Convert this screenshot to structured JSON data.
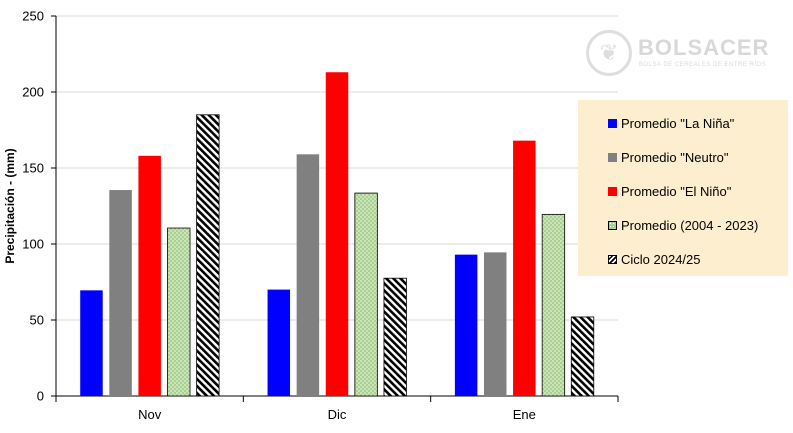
{
  "chart_data": {
    "type": "bar",
    "ylabel": "Precipitación - (mm)",
    "ylim": [
      0,
      250
    ],
    "yticks": [
      0,
      50,
      100,
      150,
      200,
      250
    ],
    "categories": [
      "Nov",
      "Dic",
      "Ene"
    ],
    "grid": true,
    "legend_position": "right",
    "series": [
      {
        "name": "Promedio \"La Niña\"",
        "values": [
          69.5,
          70,
          93
        ],
        "color": "#0000ff",
        "pattern": "solid"
      },
      {
        "name": "Promedio \"Neutro\"",
        "values": [
          135.5,
          159,
          94.5
        ],
        "color": "#808080",
        "pattern": "solid"
      },
      {
        "name": "Promedio \"El Niño\"",
        "values": [
          158,
          213,
          168
        ],
        "color": "#ff0000",
        "pattern": "solid"
      },
      {
        "name": "Promedio (2004 - 2023)",
        "values": [
          110.5,
          133.5,
          119.5
        ],
        "color": "#a9d18e",
        "pattern": "dots"
      },
      {
        "name": "Ciclo 2024/25",
        "values": [
          185,
          77.5,
          52
        ],
        "color": "#000000",
        "pattern": "diagonal-stripes"
      }
    ]
  },
  "logo": {
    "name": "BOLSACER",
    "subtitle": "BOLSA DE CEREALES DE ENTRE RÍOS",
    "glyph": "❦"
  }
}
